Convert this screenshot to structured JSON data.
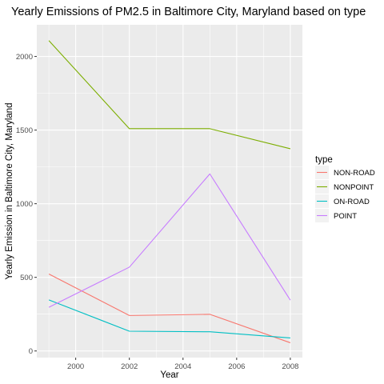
{
  "chart_data": {
    "type": "line",
    "title": "Yearly Emissions of PM2.5 in Baltimore City, Maryland based on type",
    "xlabel": "Year",
    "ylabel": "Yearly Emission in Baltimore City, Maryland",
    "x": [
      1999,
      2002,
      2005,
      2008
    ],
    "xlim": [
      1998.55,
      2008.45
    ],
    "ylim": [
      -45,
      2215
    ],
    "x_ticks": [
      2000,
      2002,
      2004,
      2006,
      2008
    ],
    "x_minor_ticks": [
      1999,
      2001,
      2003,
      2005,
      2007
    ],
    "y_ticks": [
      0,
      500,
      1000,
      1500,
      2000
    ],
    "y_minor_ticks": [
      250,
      750,
      1250,
      1750
    ],
    "grid": true,
    "background": "#EBEBEB",
    "legend": {
      "title": "type",
      "position": "right"
    },
    "series": [
      {
        "name": "NON-ROAD",
        "color": "#F8766D",
        "values": [
          522.94,
          240.85,
          248.93,
          55.82
        ]
      },
      {
        "name": "NONPOINT",
        "color": "#7CAE00",
        "values": [
          2107.63,
          1509.5,
          1509.5,
          1373.21
        ]
      },
      {
        "name": "ON-ROAD",
        "color": "#00BFC4",
        "values": [
          346.82,
          134.31,
          130.43,
          88.28
        ]
      },
      {
        "name": "POINT",
        "color": "#C77CFF",
        "values": [
          296.8,
          569.26,
          1202.49,
          344.98
        ]
      }
    ]
  }
}
